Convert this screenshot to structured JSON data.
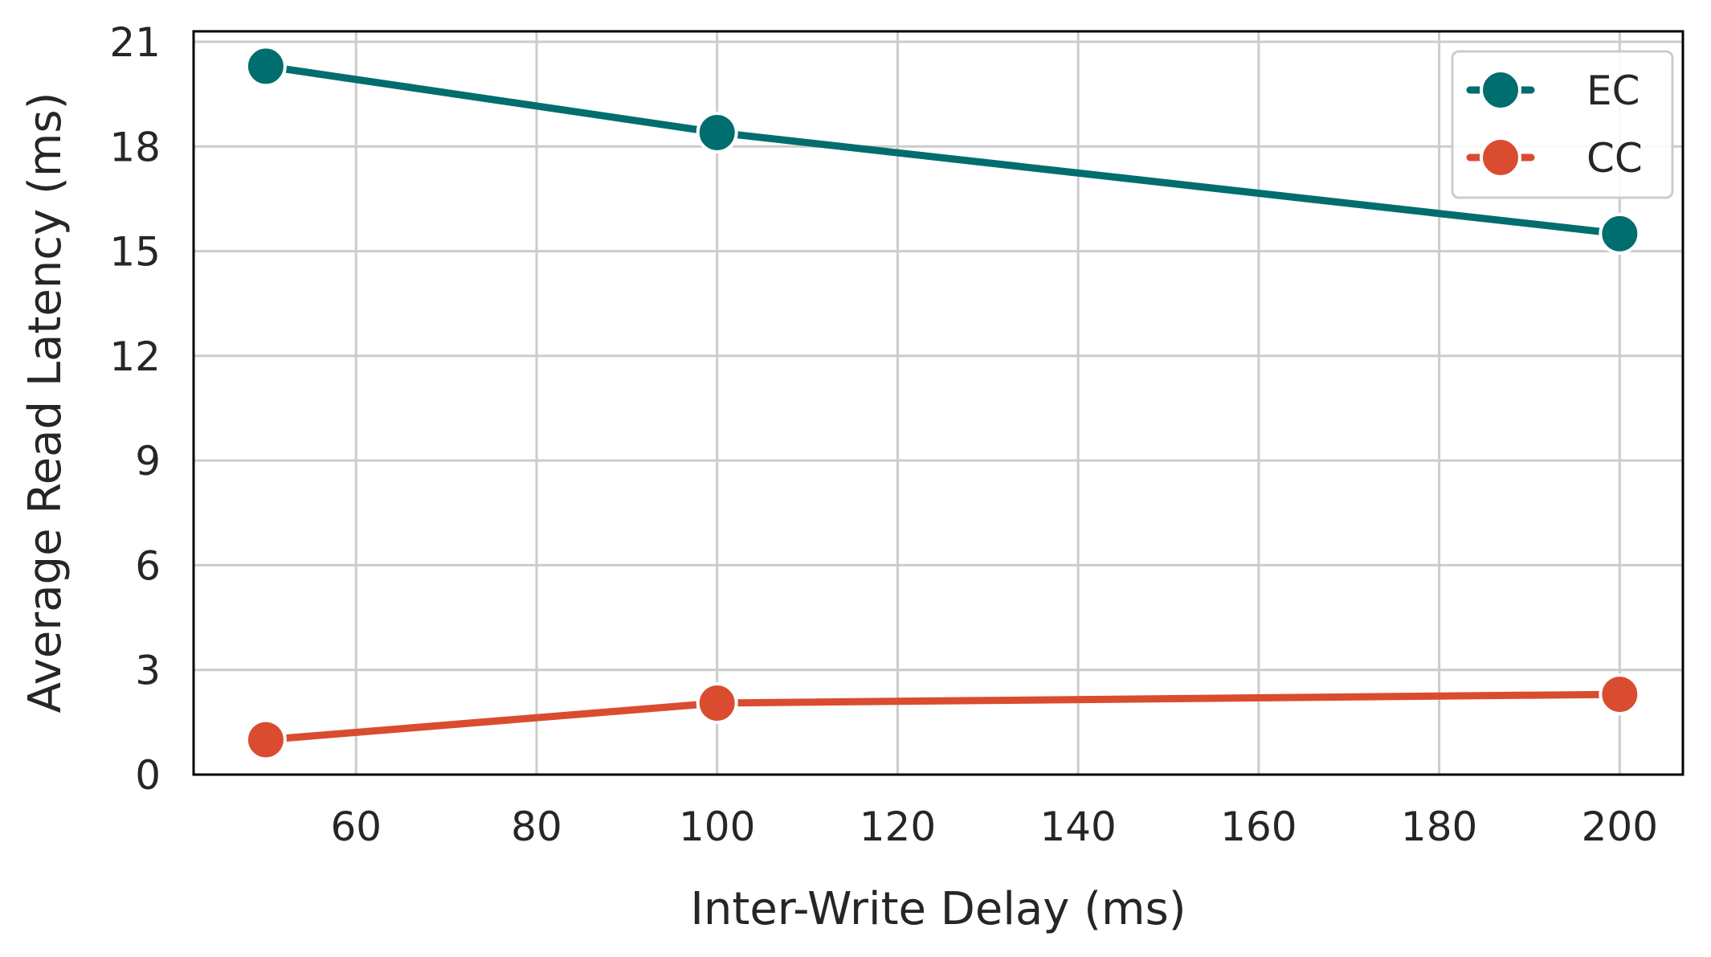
{
  "chart_data": {
    "type": "line",
    "xlabel": "Inter-Write Delay (ms)",
    "ylabel": "Average Read Latency (ms)",
    "xlim": [
      42,
      207
    ],
    "ylim": [
      0,
      21.3
    ],
    "xticks": [
      60,
      80,
      100,
      120,
      140,
      160,
      180,
      200
    ],
    "yticks": [
      0,
      3,
      6,
      9,
      12,
      15,
      18,
      21
    ],
    "grid": true,
    "legend_position": "top-right",
    "x": [
      50,
      100,
      200
    ],
    "series": [
      {
        "name": "EC",
        "color": "#006d6f",
        "values": [
          20.3,
          18.4,
          15.5
        ]
      },
      {
        "name": "CC",
        "color": "#d94c30",
        "values": [
          1.0,
          2.05,
          2.3
        ]
      }
    ]
  }
}
